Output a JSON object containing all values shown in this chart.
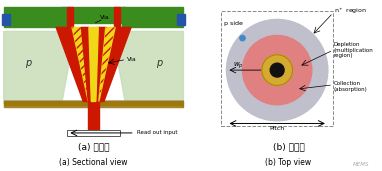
{
  "fig_width": 3.82,
  "fig_height": 1.71,
  "dpi": 100,
  "bg_color": "#ffffff",
  "left_panel": {
    "green_top_color": "#3a8c1e",
    "green_body_color": "#c8ddb8",
    "red_color": "#cc1800",
    "yellow_color": "#f0d818",
    "hatch_fc_color": "#f0c8a0",
    "gold_bar_color": "#a07808",
    "blue_box_color": "#2255aa",
    "gray_line_color": "#999999"
  },
  "right_panel": {
    "outer_circle_color": "#c0c0cc",
    "depletion_color": "#e08080",
    "inner_ring_color": "#d4aa30",
    "core_color": "#111111",
    "dot_color": "#4488cc"
  },
  "label_a_cn": "(a) 截面图",
  "label_a_en": "(a) Sectional view",
  "label_b_cn": "(b) 俯视图",
  "label_b_en": "(b) Top view",
  "watermark": "MEMS"
}
